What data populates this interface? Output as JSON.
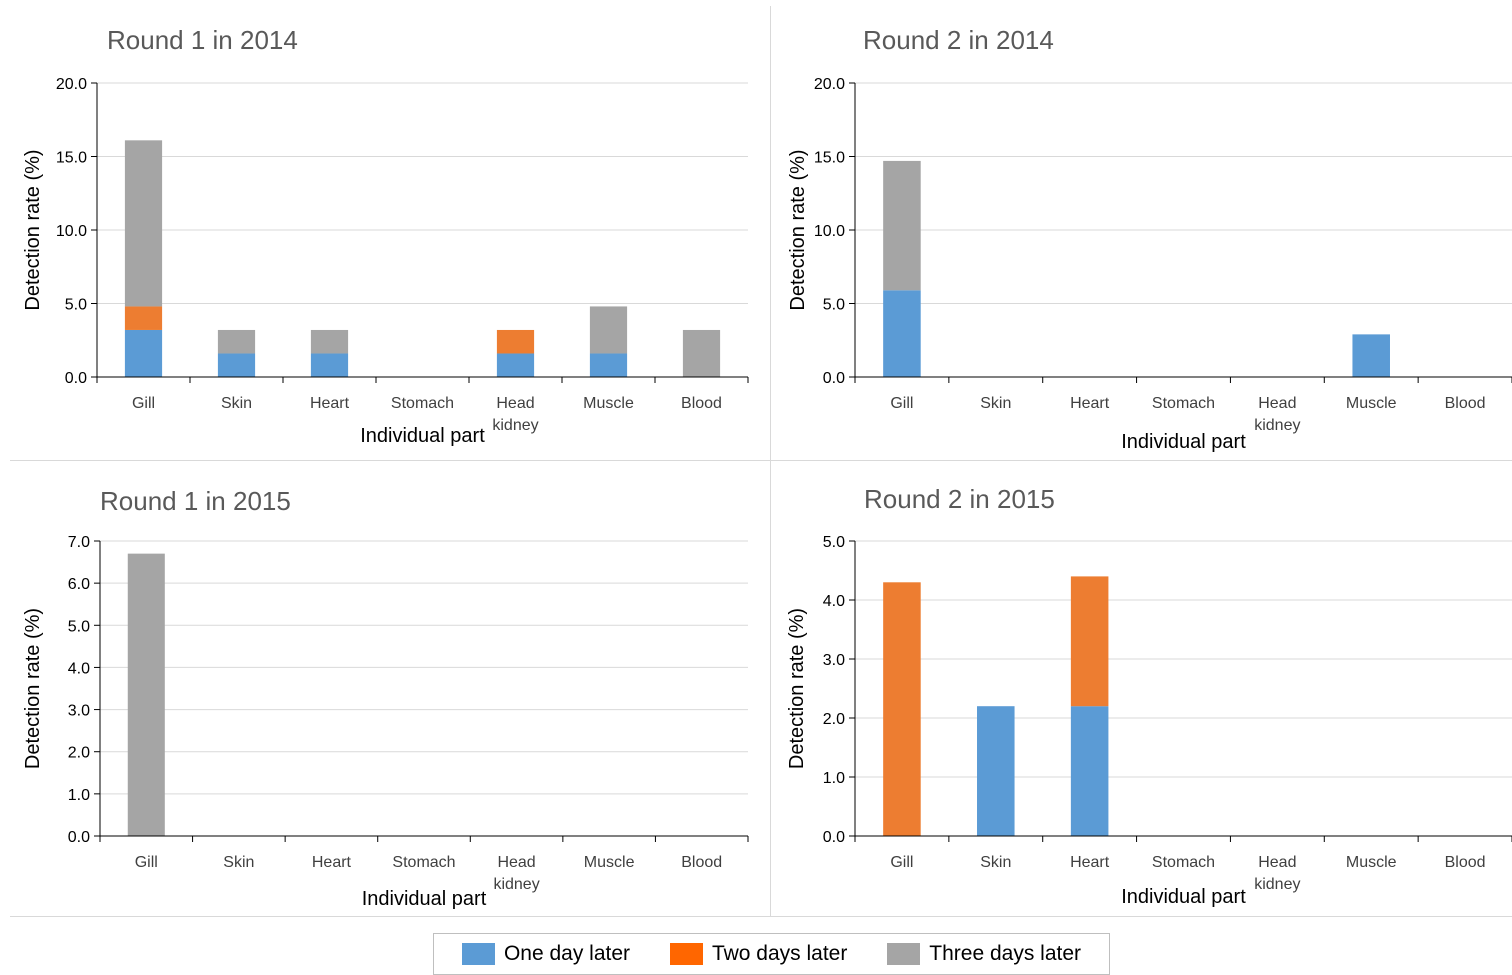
{
  "colors": {
    "one_day": "#5b9bd5",
    "two_days": "#ed7d31",
    "three_days": "#a5a5a5",
    "gridline": "#d9d9d9",
    "axis": "#000000"
  },
  "legend": {
    "items": [
      {
        "label": "One day later",
        "color": "#5b9bd5"
      },
      {
        "label": "Two days later",
        "color": "#ff6600"
      },
      {
        "label": "Three days later",
        "color": "#a5a5a5"
      }
    ]
  },
  "chart_data": [
    {
      "type": "bar",
      "stacked": true,
      "title": "Round 1 in 2014",
      "xlabel": "Individual part",
      "ylabel": "Detection rate (%)",
      "categories": [
        "Gill",
        "Skin",
        "Heart",
        "Stomach",
        "Head kidney",
        "Muscle",
        "Blood"
      ],
      "ylim": [
        0,
        20
      ],
      "yticks": [
        "0.0",
        "5.0",
        "10.0",
        "15.0",
        "20.0"
      ],
      "grid": true,
      "series": [
        {
          "name": "One day later",
          "values": [
            3.2,
            1.6,
            1.6,
            0,
            1.6,
            1.6,
            0
          ]
        },
        {
          "name": "Two days later",
          "values": [
            1.6,
            0,
            0,
            0,
            1.6,
            0,
            0
          ]
        },
        {
          "name": "Three days later",
          "values": [
            11.3,
            1.6,
            1.6,
            0,
            0,
            3.2,
            3.2
          ]
        }
      ]
    },
    {
      "type": "bar",
      "stacked": true,
      "title": "Round 2 in 2014",
      "xlabel": "Individual part",
      "ylabel": "Detection rate (%)",
      "categories": [
        "Gill",
        "Skin",
        "Heart",
        "Stomach",
        "Head kidney",
        "Muscle",
        "Blood"
      ],
      "ylim": [
        0,
        20
      ],
      "yticks": [
        "0.0",
        "5.0",
        "10.0",
        "15.0",
        "20.0"
      ],
      "grid": true,
      "series": [
        {
          "name": "One day later",
          "values": [
            5.9,
            0,
            0,
            0,
            0,
            2.9,
            0
          ]
        },
        {
          "name": "Two days later",
          "values": [
            0,
            0,
            0,
            0,
            0,
            0,
            0
          ]
        },
        {
          "name": "Three days later",
          "values": [
            8.8,
            0,
            0,
            0,
            0,
            0,
            0
          ]
        }
      ]
    },
    {
      "type": "bar",
      "stacked": true,
      "title": "Round 1 in 2015",
      "xlabel": "Individual part",
      "ylabel": "Detection rate (%)",
      "categories": [
        "Gill",
        "Skin",
        "Heart",
        "Stomach",
        "Head kidney",
        "Muscle",
        "Blood"
      ],
      "ylim": [
        0,
        7
      ],
      "yticks": [
        "0.0",
        "1.0",
        "2.0",
        "3.0",
        "4.0",
        "5.0",
        "6.0",
        "7.0"
      ],
      "grid": true,
      "series": [
        {
          "name": "One day later",
          "values": [
            0,
            0,
            0,
            0,
            0,
            0,
            0
          ]
        },
        {
          "name": "Two days later",
          "values": [
            0,
            0,
            0,
            0,
            0,
            0,
            0
          ]
        },
        {
          "name": "Three days later",
          "values": [
            6.7,
            0,
            0,
            0,
            0,
            0,
            0
          ]
        }
      ]
    },
    {
      "type": "bar",
      "stacked": true,
      "title": "Round 2 in 2015",
      "xlabel": "Individual part",
      "ylabel": "Detection rate (%)",
      "categories": [
        "Gill",
        "Skin",
        "Heart",
        "Stomach",
        "Head kidney",
        "Muscle",
        "Blood"
      ],
      "ylim": [
        0,
        5
      ],
      "yticks": [
        "0.0",
        "1.0",
        "2.0",
        "3.0",
        "4.0",
        "5.0"
      ],
      "grid": true,
      "series": [
        {
          "name": "One day later",
          "values": [
            0,
            2.2,
            2.2,
            0,
            0,
            0,
            0
          ]
        },
        {
          "name": "Two days later",
          "values": [
            4.3,
            0,
            2.2,
            0,
            0,
            0,
            0
          ]
        },
        {
          "name": "Three days later",
          "values": [
            0,
            0,
            0,
            0,
            0,
            0,
            0
          ]
        }
      ]
    }
  ]
}
